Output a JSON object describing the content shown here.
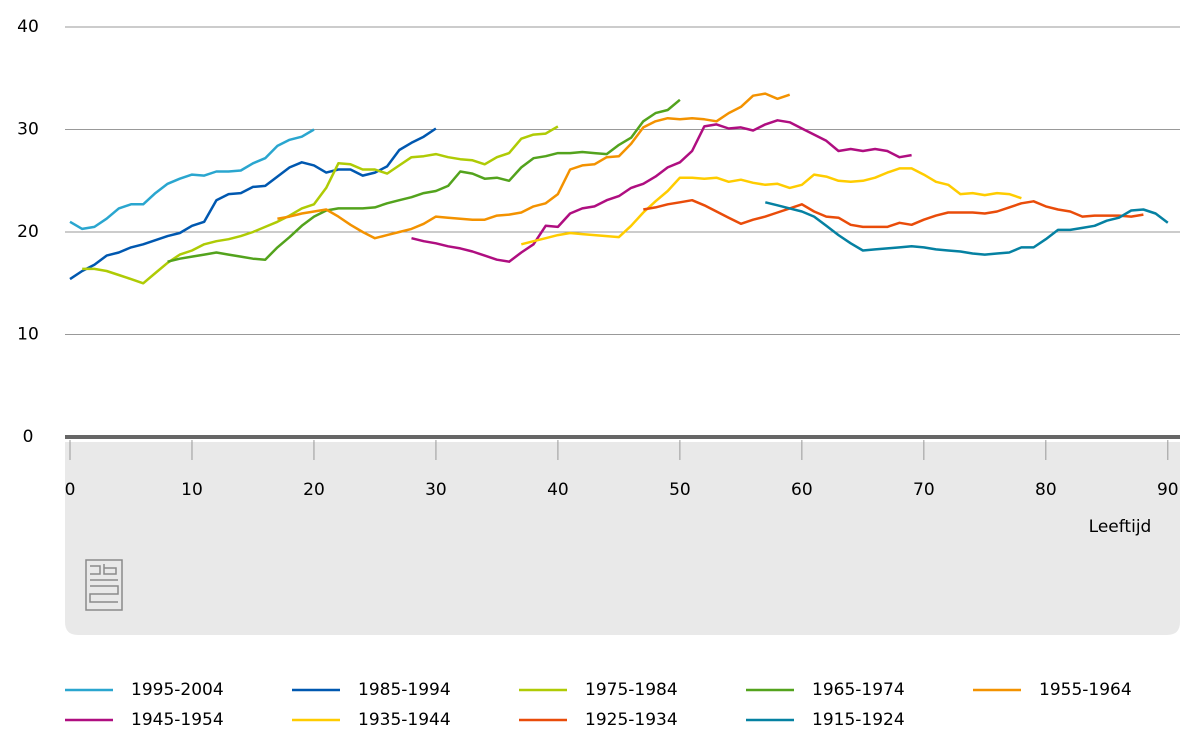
{
  "chart_data": {
    "type": "line",
    "x_label": "Leeftijd",
    "xlim": [
      0,
      91
    ],
    "xticks": [
      0,
      10,
      20,
      30,
      40,
      50,
      60,
      70,
      80,
      90
    ],
    "ylim": [
      0,
      40
    ],
    "yticks": [
      0,
      10,
      20,
      30,
      40
    ],
    "grid": true,
    "legend": "bottom",
    "series": [
      {
        "name": "1995-2004",
        "color": "#2aa6cf",
        "x": [
          0,
          1,
          2,
          3,
          4,
          5,
          6,
          7,
          8,
          9,
          10,
          11,
          12,
          13,
          14,
          15,
          16,
          17,
          18,
          19,
          20
        ],
        "values": [
          21.0,
          20.3,
          20.5,
          21.3,
          22.3,
          22.7,
          22.7,
          23.8,
          24.7,
          25.2,
          25.6,
          25.5,
          25.9,
          25.9,
          26.0,
          26.7,
          27.2,
          28.4,
          29.0,
          29.3,
          30.0
        ]
      },
      {
        "name": "1985-1994",
        "color": "#0058b0",
        "x": [
          0,
          1,
          2,
          3,
          4,
          5,
          6,
          7,
          8,
          9,
          10,
          11,
          12,
          13,
          14,
          15,
          16,
          17,
          18,
          19,
          20,
          21,
          22,
          23,
          24,
          25,
          26,
          27,
          28,
          29,
          30
        ],
        "values": [
          15.4,
          16.2,
          16.8,
          17.7,
          18.0,
          18.5,
          18.8,
          19.2,
          19.6,
          19.9,
          20.6,
          21.0,
          23.1,
          23.7,
          23.8,
          24.4,
          24.5,
          25.4,
          26.3,
          26.8,
          26.5,
          25.8,
          26.1,
          26.1,
          25.5,
          25.8,
          26.4,
          28.0,
          28.7,
          29.3,
          30.1
        ]
      },
      {
        "name": "1975-1984",
        "color": "#afcb05",
        "x": [
          1,
          2,
          3,
          4,
          5,
          6,
          7,
          8,
          9,
          10,
          11,
          12,
          13,
          14,
          15,
          16,
          17,
          18,
          19,
          20,
          21,
          22,
          23,
          24,
          25,
          26,
          27,
          28,
          29,
          30,
          31,
          32,
          33,
          34,
          35,
          36,
          37,
          38,
          39,
          40
        ],
        "values": [
          16.4,
          16.4,
          16.2,
          15.8,
          15.4,
          15.0,
          16.0,
          17.0,
          17.8,
          18.2,
          18.8,
          19.1,
          19.3,
          19.6,
          20.0,
          20.5,
          21.0,
          21.6,
          22.3,
          22.7,
          24.3,
          26.7,
          26.6,
          26.1,
          26.1,
          25.7,
          26.5,
          27.3,
          27.4,
          27.6,
          27.3,
          27.1,
          27.0,
          26.6,
          27.3,
          27.7,
          29.1,
          29.5,
          29.6,
          30.3
        ]
      },
      {
        "name": "1965-1974",
        "color": "#53a31d",
        "x": [
          8,
          9,
          10,
          11,
          12,
          13,
          14,
          15,
          16,
          17,
          18,
          19,
          20,
          21,
          22,
          23,
          24,
          25,
          26,
          27,
          28,
          29,
          30,
          31,
          32,
          33,
          34,
          35,
          36,
          37,
          38,
          39,
          40,
          41,
          42,
          43,
          44,
          45,
          46,
          47,
          48,
          49,
          50
        ],
        "values": [
          17.1,
          17.4,
          17.6,
          17.8,
          18.0,
          17.8,
          17.6,
          17.4,
          17.3,
          18.5,
          19.5,
          20.6,
          21.5,
          22.1,
          22.3,
          22.3,
          22.3,
          22.4,
          22.8,
          23.1,
          23.4,
          23.8,
          24.0,
          24.5,
          25.9,
          25.7,
          25.2,
          25.3,
          25.0,
          26.3,
          27.2,
          27.4,
          27.7,
          27.7,
          27.8,
          27.7,
          27.6,
          28.5,
          29.2,
          30.8,
          31.6,
          31.9,
          32.9
        ]
      },
      {
        "name": "1955-1964",
        "color": "#f39200",
        "x": [
          17,
          18,
          19,
          20,
          21,
          22,
          23,
          24,
          25,
          26,
          27,
          28,
          29,
          30,
          31,
          32,
          33,
          34,
          35,
          36,
          37,
          38,
          39,
          40,
          41,
          42,
          43,
          44,
          45,
          46,
          47,
          48,
          49,
          50,
          51,
          52,
          53,
          54,
          55,
          56,
          57,
          58,
          59
        ],
        "values": [
          21.3,
          21.5,
          21.8,
          22.0,
          22.2,
          21.5,
          20.7,
          20.0,
          19.4,
          19.7,
          20.0,
          20.3,
          20.8,
          21.5,
          21.4,
          21.3,
          21.2,
          21.2,
          21.6,
          21.7,
          21.9,
          22.5,
          22.8,
          23.7,
          26.1,
          26.5,
          26.6,
          27.3,
          27.4,
          28.6,
          30.2,
          30.8,
          31.1,
          31.0,
          31.1,
          31.0,
          30.8,
          31.6,
          32.2,
          33.3,
          33.5,
          33.0,
          33.4
        ]
      },
      {
        "name": "1945-1954",
        "color": "#af0e80",
        "x": [
          28,
          29,
          30,
          31,
          32,
          33,
          34,
          35,
          36,
          37,
          38,
          39,
          40,
          41,
          42,
          43,
          44,
          45,
          46,
          47,
          48,
          49,
          50,
          51,
          52,
          53,
          54,
          55,
          56,
          57,
          58,
          59,
          60,
          61,
          62,
          63,
          64,
          65,
          66,
          67,
          68,
          69
        ],
        "values": [
          19.4,
          19.1,
          18.9,
          18.6,
          18.4,
          18.1,
          17.7,
          17.3,
          17.1,
          18.0,
          18.8,
          20.6,
          20.5,
          21.8,
          22.3,
          22.5,
          23.1,
          23.5,
          24.3,
          24.7,
          25.4,
          26.3,
          26.8,
          27.9,
          30.3,
          30.5,
          30.1,
          30.2,
          29.9,
          30.5,
          30.9,
          30.7,
          30.1,
          29.5,
          28.9,
          27.9,
          28.1,
          27.9,
          28.1,
          27.9,
          27.3,
          27.5
        ]
      },
      {
        "name": "1935-1944",
        "color": "#ffcc00",
        "x": [
          37,
          38,
          39,
          40,
          41,
          42,
          43,
          44,
          45,
          46,
          47,
          48,
          49,
          50,
          51,
          52,
          53,
          54,
          55,
          56,
          57,
          58,
          59,
          60,
          61,
          62,
          63,
          64,
          65,
          66,
          67,
          68,
          69,
          70,
          71,
          72,
          73,
          74,
          75,
          76,
          77,
          78
        ],
        "values": [
          18.8,
          19.1,
          19.4,
          19.7,
          19.9,
          19.8,
          19.7,
          19.6,
          19.5,
          20.6,
          21.9,
          23.0,
          24.0,
          25.3,
          25.3,
          25.2,
          25.3,
          24.9,
          25.1,
          24.8,
          24.6,
          24.7,
          24.3,
          24.6,
          25.6,
          25.4,
          25.0,
          24.9,
          25.0,
          25.3,
          25.8,
          26.2,
          26.2,
          25.6,
          24.9,
          24.6,
          23.7,
          23.8,
          23.6,
          23.8,
          23.7,
          23.3
        ]
      },
      {
        "name": "1925-1934",
        "color": "#e94c0a",
        "x": [
          47,
          48,
          49,
          50,
          51,
          52,
          53,
          54,
          55,
          56,
          57,
          58,
          59,
          60,
          61,
          62,
          63,
          64,
          65,
          66,
          67,
          68,
          69,
          70,
          71,
          72,
          73,
          74,
          75,
          76,
          77,
          78,
          79,
          80,
          81,
          82,
          83,
          84,
          85,
          86,
          87,
          88
        ],
        "values": [
          22.2,
          22.4,
          22.7,
          22.9,
          23.1,
          22.6,
          22.0,
          21.4,
          20.8,
          21.2,
          21.5,
          21.9,
          22.3,
          22.7,
          22.0,
          21.5,
          21.4,
          20.7,
          20.5,
          20.5,
          20.5,
          20.9,
          20.7,
          21.2,
          21.6,
          21.9,
          21.9,
          21.9,
          21.8,
          22.0,
          22.4,
          22.8,
          23.0,
          22.5,
          22.2,
          22.0,
          21.5,
          21.6,
          21.6,
          21.6,
          21.5,
          21.7
        ]
      },
      {
        "name": "1915-1924",
        "color": "#0581a2",
        "x": [
          57,
          58,
          59,
          60,
          61,
          62,
          63,
          64,
          65,
          66,
          67,
          68,
          69,
          70,
          71,
          72,
          73,
          74,
          75,
          76,
          77,
          78,
          79,
          80,
          81,
          82,
          83,
          84,
          85,
          86,
          87,
          88,
          89,
          90
        ],
        "values": [
          22.9,
          22.6,
          22.3,
          22.0,
          21.5,
          20.6,
          19.7,
          18.9,
          18.2,
          18.3,
          18.4,
          18.5,
          18.6,
          18.5,
          18.3,
          18.2,
          18.1,
          17.9,
          17.8,
          17.9,
          18.0,
          18.5,
          18.5,
          19.3,
          20.2,
          20.2,
          20.4,
          20.6,
          21.1,
          21.4,
          22.1,
          22.2,
          21.8,
          20.9
        ]
      }
    ]
  }
}
